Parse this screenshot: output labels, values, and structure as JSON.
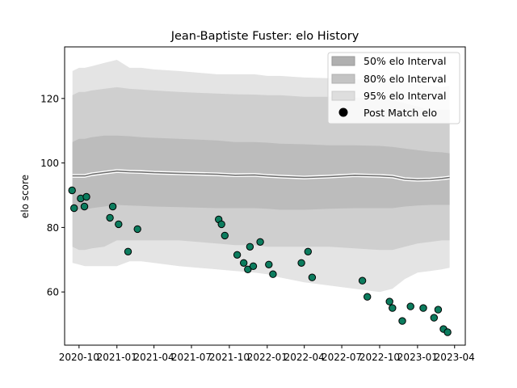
{
  "chart_data": {
    "type": "line",
    "title": "Jean-Baptiste Fuster: elo History",
    "xlabel": "",
    "ylabel": "elo score",
    "xlim": [
      "2020-08-27",
      "2023-04-27"
    ],
    "ylim": [
      43.5,
      136
    ],
    "grid": false,
    "legend_position": "top-right",
    "x_ticks": [
      {
        "date": "2020-10-01",
        "label": "2020-10"
      },
      {
        "date": "2021-01-01",
        "label": "2021-01"
      },
      {
        "date": "2021-04-01",
        "label": "2021-04"
      },
      {
        "date": "2021-07-01",
        "label": "2021-07"
      },
      {
        "date": "2021-10-01",
        "label": "2021-10"
      },
      {
        "date": "2022-01-01",
        "label": "2022-01"
      },
      {
        "date": "2022-04-01",
        "label": "2022-04"
      },
      {
        "date": "2022-07-01",
        "label": "2022-07"
      },
      {
        "date": "2022-10-01",
        "label": "2022-10"
      },
      {
        "date": "2023-01-01",
        "label": "2023-01"
      },
      {
        "date": "2023-04-01",
        "label": "2023-04"
      }
    ],
    "y_ticks": [
      60,
      80,
      100,
      120
    ],
    "dates": [
      "2020-09-15",
      "2020-10-01",
      "2020-10-15",
      "2020-11-01",
      "2020-12-01",
      "2021-01-01",
      "2021-02-01",
      "2021-03-01",
      "2021-04-01",
      "2021-06-01",
      "2021-09-01",
      "2021-10-15",
      "2021-12-01",
      "2022-01-01",
      "2022-02-01",
      "2022-04-01",
      "2022-06-01",
      "2022-08-01",
      "2022-10-01",
      "2022-11-01",
      "2022-12-01",
      "2023-01-01",
      "2023-02-01",
      "2023-03-01",
      "2023-03-20"
    ],
    "series": [
      {
        "name": "",
        "role": "mean",
        "values": [
          96.0,
          96.0,
          96.0,
          96.5,
          97.0,
          97.5,
          97.3,
          97.2,
          97.0,
          96.8,
          96.5,
          96.2,
          96.3,
          96.0,
          95.8,
          95.5,
          95.8,
          96.2,
          96.0,
          95.8,
          95.0,
          94.8,
          94.9,
          95.2,
          95.5
        ]
      },
      {
        "name": "50% elo Interval",
        "role": "band",
        "lower": [
          86.0,
          85.5,
          85.5,
          86.0,
          86.5,
          87.0,
          86.8,
          86.7,
          86.5,
          86.3,
          86.0,
          86.0,
          86.0,
          85.8,
          85.5,
          85.5,
          85.8,
          86.0,
          86.0,
          86.0,
          86.5,
          86.8,
          87.0,
          87.0,
          87.0
        ],
        "upper": [
          106.5,
          107.5,
          107.5,
          108.0,
          108.5,
          108.5,
          108.3,
          108.0,
          107.8,
          107.5,
          107.0,
          106.5,
          106.5,
          106.3,
          106.0,
          105.8,
          105.5,
          105.5,
          105.3,
          105.0,
          104.5,
          104.0,
          103.5,
          103.3,
          103.0
        ]
      },
      {
        "name": "80% elo Interval",
        "role": "band",
        "lower": [
          74.0,
          73.0,
          73.0,
          73.5,
          74.0,
          76.0,
          76.0,
          76.0,
          76.0,
          76.0,
          75.0,
          74.5,
          74.5,
          74.0,
          74.0,
          74.0,
          74.0,
          73.5,
          73.0,
          73.0,
          74.0,
          75.0,
          75.5,
          76.0,
          76.0
        ],
        "upper": [
          121.0,
          122.0,
          122.0,
          122.5,
          123.0,
          123.5,
          123.0,
          122.8,
          122.5,
          122.0,
          121.5,
          121.3,
          121.2,
          121.0,
          121.0,
          120.5,
          120.5,
          120.3,
          120.0,
          119.5,
          118.5,
          117.5,
          116.5,
          116.5,
          116.5
        ]
      },
      {
        "name": "95% elo Interval",
        "role": "band",
        "lower": [
          69.0,
          68.5,
          68.0,
          68.0,
          68.0,
          68.0,
          69.5,
          69.5,
          69.0,
          68.0,
          67.0,
          66.5,
          66.0,
          65.5,
          64.5,
          63.0,
          62.0,
          61.0,
          60.0,
          61.0,
          64.0,
          66.0,
          66.5,
          67.0,
          67.5
        ],
        "upper": [
          128.5,
          129.5,
          129.5,
          130.0,
          131.0,
          132.0,
          129.5,
          129.5,
          129.0,
          128.5,
          127.5,
          127.5,
          127.5,
          127.0,
          127.0,
          126.5,
          126.3,
          126.0,
          125.5,
          125.3,
          125.0,
          124.5,
          124.0,
          123.5,
          124.0
        ]
      },
      {
        "name": "Post Match elo",
        "role": "points",
        "points": [
          {
            "x": "2020-09-14",
            "y": 91.5
          },
          {
            "x": "2020-09-19",
            "y": 86.0
          },
          {
            "x": "2020-10-05",
            "y": 89.0
          },
          {
            "x": "2020-10-14",
            "y": 86.5
          },
          {
            "x": "2020-10-19",
            "y": 89.5
          },
          {
            "x": "2020-12-15",
            "y": 83.0
          },
          {
            "x": "2020-12-22",
            "y": 86.5
          },
          {
            "x": "2021-01-05",
            "y": 81.0
          },
          {
            "x": "2021-01-28",
            "y": 72.5
          },
          {
            "x": "2021-02-20",
            "y": 79.5
          },
          {
            "x": "2021-09-05",
            "y": 82.5
          },
          {
            "x": "2021-09-12",
            "y": 81.0
          },
          {
            "x": "2021-09-20",
            "y": 77.5
          },
          {
            "x": "2021-10-20",
            "y": 71.5
          },
          {
            "x": "2021-11-05",
            "y": 69.0
          },
          {
            "x": "2021-11-15",
            "y": 67.0
          },
          {
            "x": "2021-11-20",
            "y": 74.0
          },
          {
            "x": "2021-11-28",
            "y": 68.0
          },
          {
            "x": "2021-12-15",
            "y": 75.5
          },
          {
            "x": "2022-01-05",
            "y": 68.5
          },
          {
            "x": "2022-01-15",
            "y": 65.5
          },
          {
            "x": "2022-03-25",
            "y": 69.0
          },
          {
            "x": "2022-04-10",
            "y": 72.5
          },
          {
            "x": "2022-04-20",
            "y": 64.5
          },
          {
            "x": "2022-08-20",
            "y": 63.5
          },
          {
            "x": "2022-09-01",
            "y": 58.5
          },
          {
            "x": "2022-10-25",
            "y": 57.0
          },
          {
            "x": "2022-11-01",
            "y": 55.0
          },
          {
            "x": "2022-11-25",
            "y": 51.0
          },
          {
            "x": "2022-12-15",
            "y": 55.5
          },
          {
            "x": "2023-01-15",
            "y": 55.0
          },
          {
            "x": "2023-02-10",
            "y": 52.0
          },
          {
            "x": "2023-02-20",
            "y": 54.5
          },
          {
            "x": "2023-03-05",
            "y": 48.5
          },
          {
            "x": "2023-03-15",
            "y": 47.5
          }
        ]
      }
    ],
    "colors": {
      "band95": "#e4e4e4",
      "band80": "#cfcfcf",
      "band50": "#bcbcbc",
      "mean": "#707070",
      "points": "#0c7c5e",
      "point_edge": "#000000"
    }
  }
}
